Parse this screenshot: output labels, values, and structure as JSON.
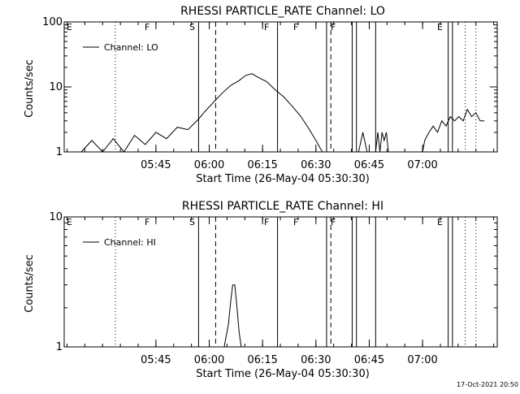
{
  "footer": {
    "timestamp": "17-Oct-2021 20:50"
  },
  "chart_data": [
    {
      "type": "line",
      "title": "RHESSI PARTICLE_RATE Channel: LO",
      "xlabel": "Start Time (26-May-04 05:30:30)",
      "ylabel": "Counts/sec",
      "yscale": "log",
      "ylim": [
        1,
        100
      ],
      "y_ticks": [
        {
          "value": 1,
          "label": "1"
        },
        {
          "value": 10,
          "label": "10"
        },
        {
          "value": 100,
          "label": "100"
        }
      ],
      "x_ticks": [
        "05:45",
        "06:00",
        "06:15",
        "06:30",
        "06:45",
        "07:00"
      ],
      "legend": {
        "label": "Channel: LO",
        "placement": "top-left"
      },
      "flags": [
        {
          "label": "E",
          "style": "dotted",
          "line": false
        },
        {
          "label": "F",
          "style": "solid"
        },
        {
          "label": "S",
          "style": "dashed",
          "line": false
        },
        {
          "label": "F",
          "style": "solid"
        },
        {
          "label": "F",
          "style": "solid"
        },
        {
          "label": "F",
          "style": "solid"
        },
        {
          "label": "E",
          "style": "dotted"
        }
      ],
      "series": [
        {
          "name": "Channel: LO",
          "segments": [
            [
              [
                5.4,
                1
              ],
              [
                5.45,
                1.5
              ],
              [
                5.5,
                1
              ],
              [
                5.55,
                1.6
              ],
              [
                5.6,
                1
              ],
              [
                5.65,
                1.8
              ],
              [
                5.7,
                1.3
              ],
              [
                5.75,
                2.0
              ],
              [
                5.8,
                1.6
              ],
              [
                5.85,
                2.4
              ],
              [
                5.9,
                2.2
              ],
              [
                5.95,
                3.2
              ],
              [
                5.98,
                4.2
              ],
              [
                6.02,
                5.8
              ],
              [
                6.06,
                8.0
              ],
              [
                6.1,
                10.5
              ],
              [
                6.14,
                12.5
              ],
              [
                6.17,
                15
              ],
              [
                6.2,
                16
              ],
              [
                6.23,
                14
              ],
              [
                6.27,
                12
              ],
              [
                6.31,
                9
              ],
              [
                6.35,
                7
              ],
              [
                6.39,
                5
              ],
              [
                6.43,
                3.5
              ],
              [
                6.47,
                2.2
              ],
              [
                6.5,
                1.5
              ],
              [
                6.53,
                1
              ]
            ],
            [
              [
                6.7,
                1
              ],
              [
                6.72,
                2
              ],
              [
                6.74,
                1
              ]
            ],
            [
              [
                6.78,
                1
              ],
              [
                6.79,
                2
              ],
              [
                6.8,
                1
              ],
              [
                6.81,
                2
              ],
              [
                6.82,
                1.5
              ],
              [
                6.83,
                2
              ],
              [
                6.84,
                1
              ]
            ],
            [
              [
                7.0,
                1
              ],
              [
                7.01,
                1.5
              ],
              [
                7.03,
                2
              ],
              [
                7.05,
                2.5
              ],
              [
                7.07,
                2
              ],
              [
                7.09,
                3
              ],
              [
                7.11,
                2.5
              ],
              [
                7.13,
                3.5
              ],
              [
                7.15,
                3
              ],
              [
                7.17,
                3.5
              ],
              [
                7.19,
                3
              ],
              [
                7.21,
                4.5
              ],
              [
                7.23,
                3.5
              ],
              [
                7.25,
                4
              ],
              [
                7.27,
                3
              ],
              [
                7.29,
                3
              ]
            ]
          ]
        }
      ]
    },
    {
      "type": "line",
      "title": "RHESSI PARTICLE_RATE Channel: HI",
      "xlabel": "Start Time (26-May-04 05:30:30)",
      "ylabel": "Counts/sec",
      "yscale": "log",
      "ylim": [
        1,
        10
      ],
      "y_ticks": [
        {
          "value": 1,
          "label": "1"
        },
        {
          "value": 10,
          "label": "10"
        }
      ],
      "x_ticks": [
        "05:45",
        "06:00",
        "06:15",
        "06:30",
        "06:45",
        "07:00"
      ],
      "legend": {
        "label": "Channel: HI",
        "placement": "top-left"
      },
      "flags": [
        {
          "label": "E",
          "style": "dotted",
          "line": false
        },
        {
          "label": "F",
          "style": "solid"
        },
        {
          "label": "S",
          "style": "dashed",
          "line": false
        },
        {
          "label": "F",
          "style": "solid"
        },
        {
          "label": "F",
          "style": "solid"
        },
        {
          "label": "F",
          "style": "solid"
        },
        {
          "label": "E",
          "style": "dotted"
        }
      ],
      "series": [
        {
          "name": "Channel: HI",
          "segments": [
            [
              [
                6.07,
                1
              ],
              [
                6.09,
                1.5
              ],
              [
                6.1,
                2.2
              ],
              [
                6.11,
                3
              ],
              [
                6.12,
                3
              ],
              [
                6.13,
                2
              ],
              [
                6.14,
                1.3
              ],
              [
                6.15,
                1
              ]
            ]
          ]
        }
      ]
    }
  ]
}
